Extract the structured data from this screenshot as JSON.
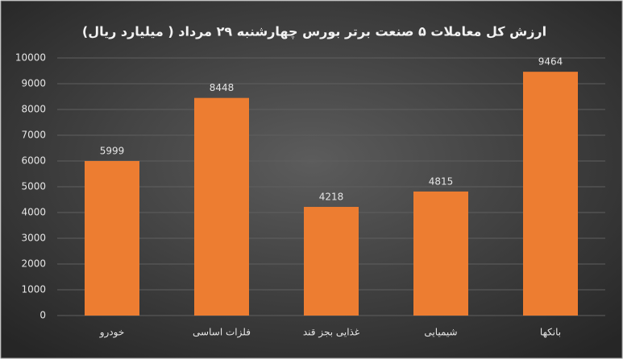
{
  "chart_data": {
    "type": "bar",
    "title": "ارزش کل معاملات ۵ صنعت برتر بورس چهارشنبه ۲۹ مرداد ( میلیارد ریال)",
    "categories": [
      "خودرو",
      "فلزات اساسی",
      "غذایی بجز قند",
      "شیمیایی",
      "بانکها"
    ],
    "values": [
      5999,
      8448,
      4218,
      4815,
      9464
    ],
    "color": "#ed7d31",
    "ylim": [
      0,
      10000
    ],
    "yticks": [
      0,
      1000,
      2000,
      3000,
      4000,
      5000,
      6000,
      7000,
      8000,
      9000,
      10000
    ],
    "grid": true
  }
}
